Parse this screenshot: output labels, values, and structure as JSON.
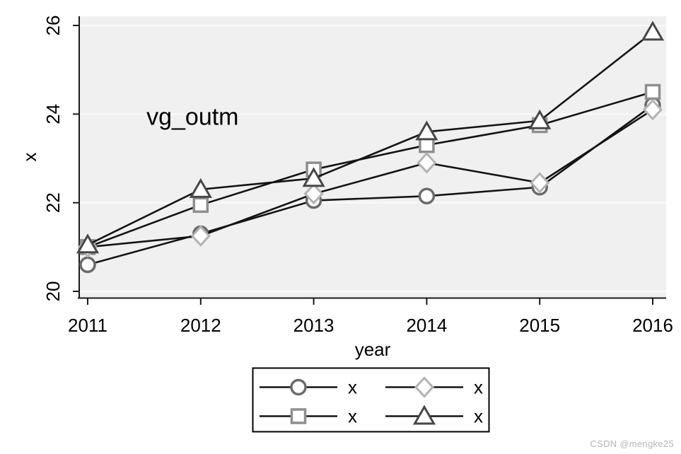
{
  "watermark": {
    "text": "CSDN @mengke25",
    "color": "#b5b5b5"
  },
  "chart_data": {
    "type": "line",
    "title": "",
    "xlabel": "year",
    "ylabel": "x",
    "x": [
      2011,
      2012,
      2013,
      2014,
      2015,
      2016
    ],
    "x_ticks": [
      2011,
      2012,
      2013,
      2014,
      2015,
      2016
    ],
    "y_ticks": [
      20,
      22,
      24,
      26
    ],
    "xlim": [
      2010.93,
      2016.12
    ],
    "ylim": [
      19.85,
      26.2
    ],
    "grid": true,
    "annotation": {
      "text": "vg_outm",
      "color": "#ff0000",
      "x": 2011.52,
      "y": 23.93
    },
    "style": {
      "plot_background": "#f0f0f0",
      "grid_color": "#fafafa",
      "axis_color": "#1a1a1a",
      "line_color": "#141414",
      "marker_fill": "#ffffff",
      "text_color": "#000000"
    },
    "series": [
      {
        "name": "x",
        "marker": "circle",
        "marker_color": "#6b6b6b",
        "values": [
          20.6,
          21.3,
          22.05,
          22.15,
          22.35,
          24.2
        ]
      },
      {
        "name": "x",
        "marker": "square",
        "marker_color": "#8f8f8f",
        "values": [
          21.0,
          21.95,
          22.75,
          23.3,
          23.75,
          24.5
        ]
      },
      {
        "name": "x",
        "marker": "diamond",
        "marker_color": "#b2b2b2",
        "values": [
          21.0,
          21.25,
          22.2,
          22.9,
          22.45,
          24.1
        ]
      },
      {
        "name": "x",
        "marker": "triangle",
        "marker_color": "#474747",
        "values": [
          21.05,
          22.3,
          22.55,
          23.6,
          23.85,
          25.85
        ]
      }
    ],
    "legend": {
      "position": "bottom",
      "columns": 2,
      "items": [
        {
          "marker": "circle",
          "label": "x"
        },
        {
          "marker": "diamond",
          "label": "x"
        },
        {
          "marker": "square",
          "label": "x"
        },
        {
          "marker": "triangle",
          "label": "x"
        }
      ]
    }
  }
}
